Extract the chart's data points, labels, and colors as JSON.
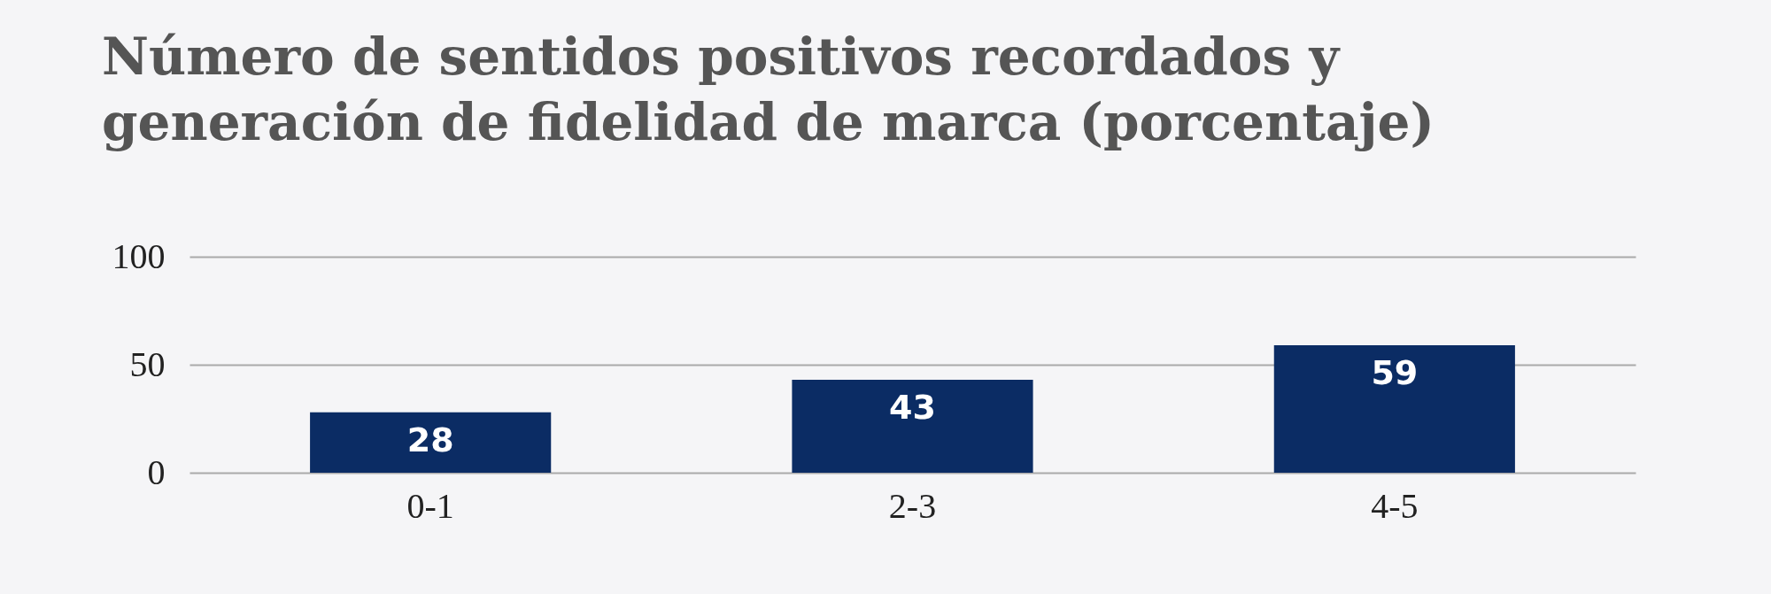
{
  "chart_data": {
    "type": "bar",
    "title": "Número de sentidos positivos recordados y generación de fidelidad de marca (porcentaje)",
    "categories": [
      "0-1",
      "2-3",
      "4-5"
    ],
    "values": [
      28,
      43,
      59
    ],
    "color": "#0b2c64",
    "ylim": [
      0,
      100
    ],
    "yticks": [
      0,
      50,
      100
    ],
    "grid": "y",
    "data_labels": true
  }
}
